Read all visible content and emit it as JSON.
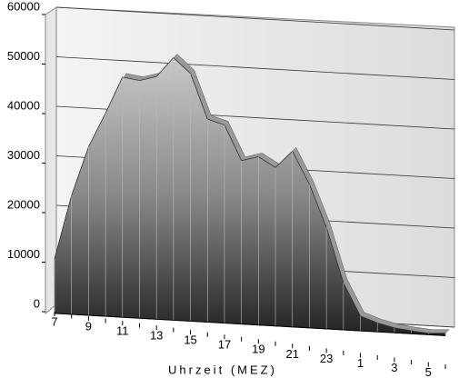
{
  "chart_data": {
    "type": "area",
    "x_label": "Uhrzeit (MEZ)",
    "categories": [
      "7",
      null,
      "9",
      null,
      "11",
      null,
      "13",
      null,
      "15",
      null,
      "17",
      null,
      "19",
      null,
      "21",
      null,
      "23",
      null,
      "1",
      null,
      "3",
      null,
      "5",
      null
    ],
    "values": [
      11000,
      24000,
      34000,
      41000,
      48500,
      48000,
      49000,
      53000,
      50000,
      41000,
      40000,
      33000,
      34000,
      32000,
      35500,
      29000,
      20500,
      9500,
      3000,
      1800,
      1000,
      600,
      300,
      500
    ],
    "color": "#555555",
    "ylim": [
      0,
      60000
    ],
    "yticks": [
      0,
      10000,
      20000,
      30000,
      40000,
      50000,
      60000
    ],
    "grid": true
  }
}
